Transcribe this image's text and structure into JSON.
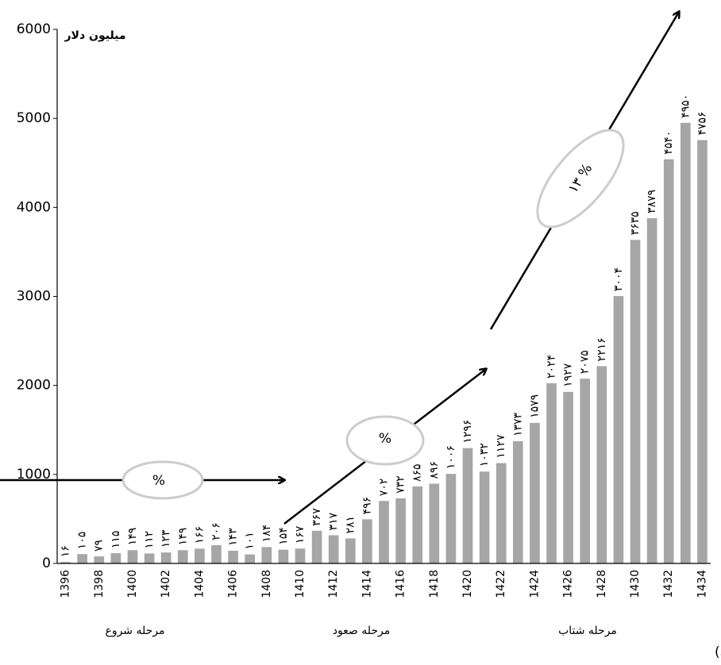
{
  "chart_data": {
    "type": "bar",
    "y_label": "میلیون دلار",
    "categories": [
      "1396",
      null,
      "1398",
      null,
      "1400",
      null,
      "1402",
      null,
      "1404",
      null,
      "1406",
      null,
      "1408",
      null,
      "1410",
      null,
      "1412",
      null,
      "1414",
      null,
      "1416",
      null,
      "1418",
      null,
      "1420",
      null,
      "1422",
      null,
      "1424",
      null,
      "1426",
      null,
      "1428",
      null,
      "1430",
      null,
      "1432",
      null,
      "1434"
    ],
    "values": [
      16,
      105,
      79,
      115,
      149,
      112,
      123,
      149,
      166,
      206,
      143,
      101,
      184,
      154,
      167,
      367,
      317,
      281,
      496,
      702,
      732,
      865,
      896,
      1006,
      1296,
      1032,
      1127,
      1373,
      1579,
      2024,
      1927,
      2075,
      2216,
      3004,
      3635,
      3879,
      4540,
      4950,
      4756
    ],
    "value_labels": [
      "۱۶",
      "۱۰۵",
      "۷۹",
      "۱۱۵",
      "۱۴۹",
      "۱۱۲",
      "۱۲۳",
      "۱۴۹",
      "۱۶۶",
      "۲۰۶",
      "۱۴۳",
      "۱۰۱",
      "۱۸۴",
      "۱۵۴",
      "۱۶۷",
      "۳۶۷",
      "۳۱۷",
      "۲۸۱",
      "۴۹۶",
      "۷۰۲",
      "۷۳۲",
      "۸۶۵",
      "۸۹۶",
      "۱۰۰۶",
      "۱۲۹۶",
      "۱۰۳۲",
      "۱۱۲۷",
      "۱۳۷۳",
      "۱۵۷۹",
      "۲۰۲۴",
      "۱۹۲۷",
      "۲۰۷۵",
      "۲۲۱۶",
      "۳۰۰۴",
      "۳۶۳۵",
      "۳۸۷۹",
      "۴۵۴۰",
      "۴۹۵۰",
      "۴۷۵۶"
    ],
    "color": "#a6a6a6",
    "ylim": [
      0,
      6000
    ],
    "yticks": [
      0,
      1000,
      2000,
      3000,
      4000,
      5000,
      6000
    ],
    "grid": false,
    "annotations": [
      "%",
      "%",
      "۱۳ %"
    ],
    "phases": [
      "مرحله شروع",
      "مرحله صعود",
      "مرحله شتاب"
    ],
    "caption": "موسسات بزرگ وابسته به گروه بانک توسعه اسلامی عبارتند از: (همان)"
  }
}
